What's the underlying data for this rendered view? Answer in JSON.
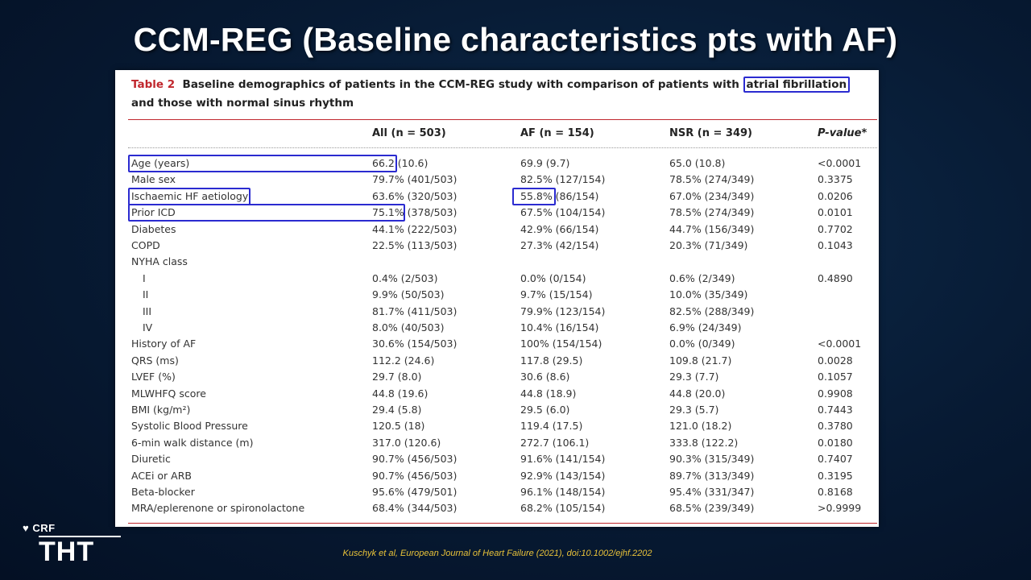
{
  "slide": {
    "title": "CCM-REG (Baseline characteristics pts with AF)",
    "citation": "Kuschyk et al, European Journal of Heart Failure (2021), doi:10.1002/ejhf.2202"
  },
  "logo": {
    "top": "CRF",
    "main": "THT",
    "icon": "crf-heart-icon"
  },
  "table": {
    "label": "Table 2",
    "caption_pre": "Baseline demographics of patients in the CCM-REG study with comparison of patients with ",
    "caption_boxed": "atrial fibrillation",
    "caption_post": "and those with normal sinus rhythm",
    "headers": [
      "",
      "All (n = 503)",
      "AF (n = 154)",
      "NSR (n = 349)",
      "P-value*"
    ],
    "rows": [
      {
        "label": "Age (years)",
        "all": "66.2 (10.6)",
        "af": "69.9 (9.7)",
        "nsr": "65.0 (10.8)",
        "p": "<0.0001"
      },
      {
        "label": "Male sex",
        "all": "79.7% (401/503)",
        "af": "82.5% (127/154)",
        "nsr": "78.5% (274/349)",
        "p": "0.3375"
      },
      {
        "label": "Ischaemic HF aetiology",
        "all": "63.6% (320/503)",
        "af": "55.8% (86/154)",
        "nsr": "67.0% (234/349)",
        "p": "0.0206"
      },
      {
        "label": "Prior ICD",
        "all": "75.1% (378/503)",
        "af": "67.5% (104/154)",
        "nsr": "78.5% (274/349)",
        "p": "0.0101"
      },
      {
        "label": "Diabetes",
        "all": "44.1% (222/503)",
        "af": "42.9% (66/154)",
        "nsr": "44.7% (156/349)",
        "p": "0.7702"
      },
      {
        "label": "COPD",
        "all": "22.5% (113/503)",
        "af": "27.3% (42/154)",
        "nsr": "20.3% (71/349)",
        "p": "0.1043"
      },
      {
        "label": "NYHA class",
        "all": "",
        "af": "",
        "nsr": "",
        "p": ""
      },
      {
        "label": "I",
        "all": "0.4% (2/503)",
        "af": "0.0% (0/154)",
        "nsr": "0.6% (2/349)",
        "p": "0.4890",
        "indent": true
      },
      {
        "label": "II",
        "all": "9.9% (50/503)",
        "af": "9.7% (15/154)",
        "nsr": "10.0% (35/349)",
        "p": "",
        "indent": true
      },
      {
        "label": "III",
        "all": "81.7% (411/503)",
        "af": "79.9% (123/154)",
        "nsr": "82.5% (288/349)",
        "p": "",
        "indent": true
      },
      {
        "label": "IV",
        "all": "8.0% (40/503)",
        "af": "10.4% (16/154)",
        "nsr": "6.9% (24/349)",
        "p": "",
        "indent": true
      },
      {
        "label": "History of AF",
        "all": "30.6% (154/503)",
        "af": "100% (154/154)",
        "nsr": "0.0% (0/349)",
        "p": "<0.0001"
      },
      {
        "label": "QRS (ms)",
        "all": "112.2 (24.6)",
        "af": "117.8 (29.5)",
        "nsr": "109.8 (21.7)",
        "p": "0.0028"
      },
      {
        "label": "LVEF (%)",
        "all": "29.7 (8.0)",
        "af": "30.6 (8.6)",
        "nsr": "29.3 (7.7)",
        "p": "0.1057"
      },
      {
        "label": "MLWHFQ score",
        "all": "44.8 (19.6)",
        "af": "44.8 (18.9)",
        "nsr": "44.8 (20.0)",
        "p": "0.9908"
      },
      {
        "label": "BMI (kg/m²)",
        "all": "29.4 (5.8)",
        "af": "29.5 (6.0)",
        "nsr": "29.3 (5.7)",
        "p": "0.7443"
      },
      {
        "label": "Systolic Blood Pressure",
        "all": "120.5 (18)",
        "af": "119.4 (17.5)",
        "nsr": "121.0 (18.2)",
        "p": "0.3780"
      },
      {
        "label": "6-min walk distance (m)",
        "all": "317.0 (120.6)",
        "af": "272.7 (106.1)",
        "nsr": "333.8 (122.2)",
        "p": "0.0180"
      },
      {
        "label": "Diuretic",
        "all": "90.7% (456/503)",
        "af": "91.6% (141/154)",
        "nsr": "90.3% (315/349)",
        "p": "0.7407"
      },
      {
        "label": "ACEi or ARB",
        "all": "90.7% (456/503)",
        "af": "92.9% (143/154)",
        "nsr": "89.7% (313/349)",
        "p": "0.3195"
      },
      {
        "label": "Beta-blocker",
        "all": "95.6% (479/501)",
        "af": "96.1% (148/154)",
        "nsr": "95.4% (331/347)",
        "p": "0.8168"
      },
      {
        "label": "MRA/eplerenone or spironolactone",
        "all": "68.4% (344/503)",
        "af": "68.2% (105/154)",
        "nsr": "68.5% (239/349)",
        "p": ">0.9999"
      }
    ]
  }
}
